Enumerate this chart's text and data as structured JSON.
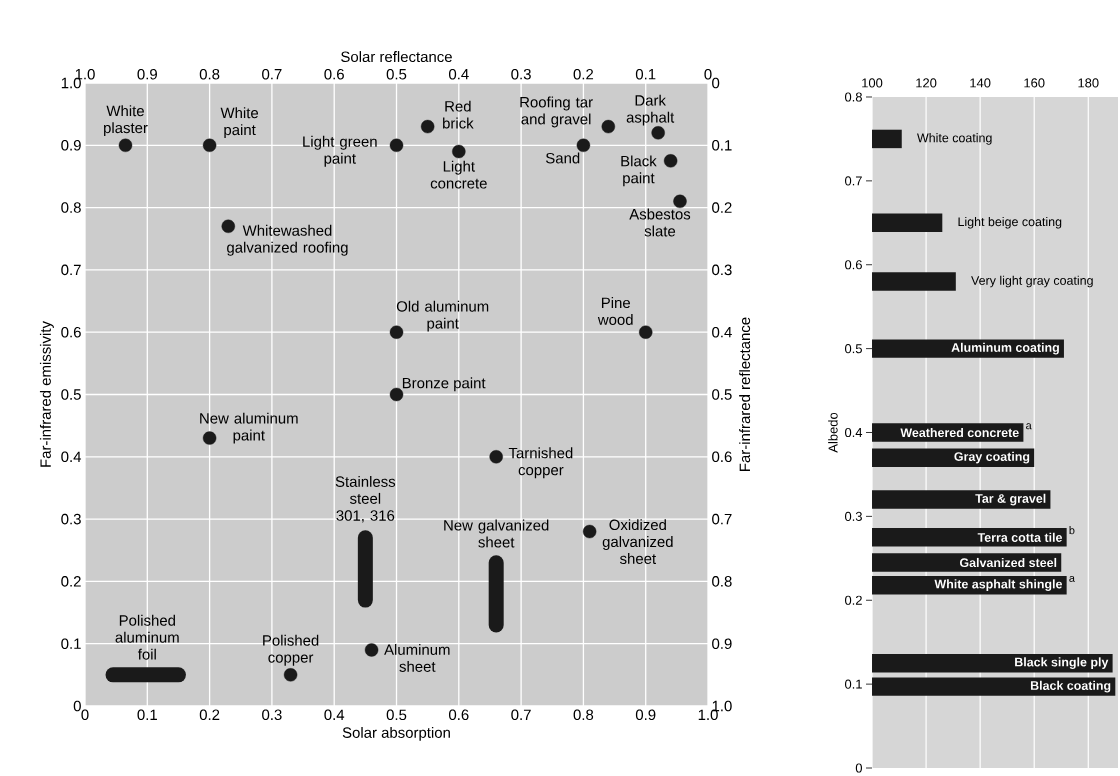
{
  "chart_data": [
    {
      "type": "scatter",
      "xlabel": "Solar absorption",
      "ylabel": "Far-infrared emissivity",
      "x2label": "Solar reflectance",
      "y2label": "Far-infrared reflectance",
      "xlim": [
        0,
        1
      ],
      "xticks": [
        0,
        0.1,
        0.2,
        0.3,
        0.4,
        0.5,
        0.6,
        0.7,
        0.8,
        0.9,
        {
          "value": 1,
          "label": "1.0"
        }
      ],
      "ylim": [
        0,
        1
      ],
      "yticks": [
        0,
        0.1,
        0.2,
        0.3,
        0.4,
        0.5,
        0.6,
        0.7,
        0.8,
        0.9,
        {
          "value": 1,
          "label": "1.0"
        }
      ],
      "x2lim": [
        1,
        0
      ],
      "x2ticks": [
        {
          "value": 1,
          "label": "1.0"
        },
        0.9,
        0.8,
        0.7,
        0.6,
        0.5,
        0.4,
        0.3,
        0.2,
        0.1,
        0
      ],
      "y2lim": [
        1,
        0
      ],
      "y2ticks": [
        0,
        0.1,
        0.2,
        0.3,
        0.4,
        0.5,
        0.6,
        0.7,
        0.8,
        0.9,
        {
          "value": 1,
          "label": "1.0"
        }
      ],
      "grid": true,
      "marker": "circle",
      "series": [
        {
          "type": "scatter",
          "color": "#1a1a1a",
          "x": [
            0.065,
            0.2,
            0.5,
            0.55,
            0.6,
            0.84,
            0.8,
            0.92,
            0.94,
            0.955,
            0.23,
            0.9,
            0.5,
            0.5,
            0.2,
            0.66,
            0.81,
            0.46,
            0.33
          ],
          "values": [
            0.9,
            0.9,
            0.9,
            0.93,
            0.89,
            0.93,
            0.9,
            0.92,
            0.875,
            0.81,
            0.77,
            0.6,
            0.6,
            0.5,
            0.43,
            0.4,
            0.28,
            0.09,
            0.05
          ]
        },
        {
          "type": "line",
          "marker": "none",
          "color": "#1a1a1a",
          "x": [
            0.045,
            0.15
          ],
          "values": [
            0.05,
            0.05
          ]
        },
        {
          "type": "line",
          "marker": "none",
          "color": "#1a1a1a",
          "x": [
            0.45,
            0.45
          ],
          "values": [
            0.17,
            0.27
          ]
        },
        {
          "type": "line",
          "marker": "none",
          "color": "#1a1a1a",
          "x": [
            0.66,
            0.66
          ],
          "values": [
            0.13,
            0.23
          ]
        }
      ],
      "annotations": [
        {
          "text": "White plaster",
          "x": 0.065,
          "y": 0.9
        },
        {
          "text": "White paint",
          "x": 0.2,
          "y": 0.9
        },
        {
          "text": "Light green paint",
          "x": 0.5,
          "y": 0.9
        },
        {
          "text": "Red brick",
          "x": 0.55,
          "y": 0.93
        },
        {
          "text": "Light concrete",
          "x": 0.6,
          "y": 0.89
        },
        {
          "text": "Roofing tar and gravel",
          "x": 0.84,
          "y": 0.93
        },
        {
          "text": "Sand",
          "x": 0.8,
          "y": 0.9
        },
        {
          "text": "Dark asphalt",
          "x": 0.92,
          "y": 0.92
        },
        {
          "text": "Black paint",
          "x": 0.94,
          "y": 0.875
        },
        {
          "text": "Asbestos slate",
          "x": 0.955,
          "y": 0.81
        },
        {
          "text": "Whitewashed galvanized roofing",
          "x": 0.23,
          "y": 0.77
        },
        {
          "text": "Pine wood",
          "x": 0.9,
          "y": 0.6
        },
        {
          "text": "Old aluminum paint",
          "x": 0.5,
          "y": 0.6
        },
        {
          "text": "Bronze paint",
          "x": 0.5,
          "y": 0.5
        },
        {
          "text": "New aluminum paint",
          "x": 0.2,
          "y": 0.43
        },
        {
          "text": "Tarnished copper",
          "x": 0.66,
          "y": 0.4
        },
        {
          "text": "Oxidized galvanized sheet",
          "x": 0.81,
          "y": 0.28
        },
        {
          "text": "Aluminum sheet",
          "x": 0.46,
          "y": 0.09
        },
        {
          "text": "Polished copper",
          "x": 0.33,
          "y": 0.05
        },
        {
          "text": "Polished aluminum foil",
          "x": 0.1,
          "y": 0.05
        },
        {
          "text": "Stainless steel 301, 316",
          "x": 0.45,
          "y": 0.27
        },
        {
          "text": "New galvanized sheet",
          "x": 0.66,
          "y": 0.23
        }
      ]
    },
    {
      "type": "bar",
      "orientation": "horizontal",
      "ylabel": "Albedo",
      "x": [
        0.75,
        0.65,
        0.58,
        0.5,
        0.4,
        0.37,
        0.32,
        0.275,
        0.245,
        0.218,
        0.125,
        0.097
      ],
      "values": [
        111,
        126,
        131,
        171,
        156,
        160,
        166,
        172,
        170,
        172,
        189,
        190
      ],
      "color": "#1a1a1a",
      "xlim": [
        100,
        191
      ],
      "xticks": [
        100,
        120,
        140,
        160,
        180
      ],
      "ylim": [
        0,
        0.8
      ],
      "yticks": [
        0,
        0.1,
        0.2,
        0.3,
        0.4,
        0.5,
        0.6,
        0.7,
        0.8
      ],
      "grid": "x",
      "annotations": [
        {
          "text": "White coating",
          "x": 111,
          "y": 0.75
        },
        {
          "text": "Light beige coating",
          "x": 126,
          "y": 0.65
        },
        {
          "text": "Very light gray coating",
          "x": 131,
          "y": 0.58
        },
        {
          "text": "Aluminum coating",
          "x": 171,
          "y": 0.5
        },
        {
          "text": "Weathered concrete",
          "x": 156,
          "y": 0.4
        },
        {
          "text": "Gray coating",
          "x": 160,
          "y": 0.37
        },
        {
          "text": "Tar & gravel",
          "x": 166,
          "y": 0.32
        },
        {
          "text": "Terra cotta tile",
          "x": 172,
          "y": 0.275
        },
        {
          "text": "Galvanized steel",
          "x": 170,
          "y": 0.245
        },
        {
          "text": "White asphalt shingle",
          "x": 172,
          "y": 0.218
        },
        {
          "text": "Black single ply",
          "x": 189,
          "y": 0.125
        },
        {
          "text": "Black coating",
          "x": 190,
          "y": 0.097
        },
        {
          "text": "a",
          "x": 156,
          "y": 0.4
        },
        {
          "text": "b",
          "x": 172,
          "y": 0.275
        },
        {
          "text": "a",
          "x": 172,
          "y": 0.218
        }
      ]
    }
  ]
}
